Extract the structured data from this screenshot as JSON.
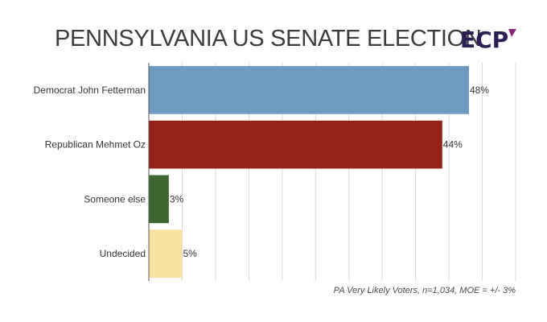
{
  "header": {
    "title": "PENNSYLVANIA US SENATE ELECTION",
    "logo_text": "ECP"
  },
  "footnote": "PA Very Likely Voters, n=1,034, MOE = +/- 3%",
  "chart_data": {
    "type": "bar",
    "orientation": "horizontal",
    "title": "PENNSYLVANIA US SENATE ELECTION",
    "categories": [
      "Democrat John Fetterman",
      "Republican Mehmet Oz",
      "Someone else",
      "Undecided"
    ],
    "values": [
      48,
      44,
      3,
      5
    ],
    "value_labels": [
      "48%",
      "44%",
      "3%",
      "5%"
    ],
    "colors": [
      "#6e99c0",
      "#962118",
      "#3d6630",
      "#f8e1a1"
    ],
    "xlim": [
      0,
      55
    ],
    "grid": true,
    "legend": "none"
  },
  "colors": {
    "title": "#3c3c3c",
    "logo": "#2a1e55",
    "grid": "#d9d9d9",
    "axis": "#555555"
  }
}
